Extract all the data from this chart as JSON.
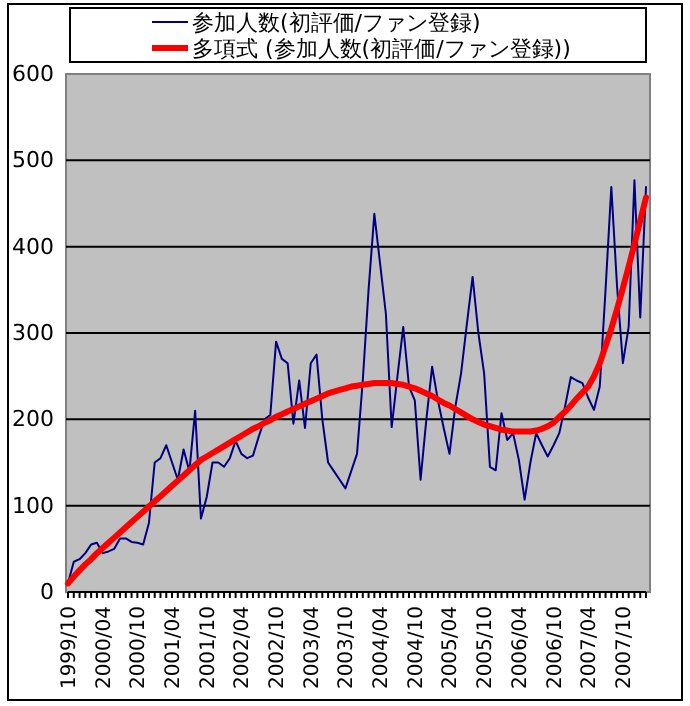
{
  "chart_data": {
    "type": "line",
    "categories": [
      "1999/10",
      null,
      null,
      null,
      null,
      null,
      "2000/04",
      null,
      null,
      null,
      null,
      null,
      "2000/10",
      null,
      null,
      null,
      null,
      null,
      "2001/04",
      null,
      null,
      null,
      null,
      null,
      "2001/10",
      null,
      null,
      null,
      null,
      null,
      "2002/04",
      null,
      null,
      null,
      null,
      null,
      "2002/10",
      null,
      null,
      null,
      null,
      null,
      "2003/04",
      null,
      null,
      null,
      null,
      null,
      "2003/10",
      null,
      null,
      null,
      null,
      null,
      "2004/04",
      null,
      null,
      null,
      null,
      null,
      "2004/10",
      null,
      null,
      null,
      null,
      null,
      "2005/04",
      null,
      null,
      null,
      null,
      null,
      "2005/10",
      null,
      null,
      null,
      null,
      null,
      "2006/04",
      null,
      null,
      null,
      null,
      null,
      "2006/10",
      null,
      null,
      null,
      null,
      null,
      "2007/04",
      null,
      null,
      null,
      null,
      null,
      "2007/10",
      null,
      null,
      null,
      null
    ],
    "series": [
      {
        "name": "参加人数(初評価/ファン登録)",
        "color": "#000080",
        "values": [
          10,
          35,
          38,
          45,
          55,
          57,
          45,
          47,
          50,
          62,
          62,
          58,
          57,
          55,
          80,
          150,
          155,
          170,
          150,
          130,
          165,
          140,
          210,
          85,
          110,
          150,
          150,
          145,
          155,
          175,
          160,
          155,
          158,
          180,
          200,
          205,
          290,
          270,
          265,
          195,
          245,
          190,
          265,
          275,
          200,
          150,
          140,
          130,
          120,
          140,
          160,
          245,
          350,
          438,
          380,
          322,
          191,
          250,
          307,
          238,
          222,
          130,
          200,
          261,
          222,
          190,
          160,
          214,
          253,
          310,
          365,
          300,
          253,
          145,
          141,
          207,
          176,
          184,
          153,
          107,
          150,
          184,
          170,
          157,
          170,
          184,
          215,
          249,
          245,
          242,
          225,
          211,
          238,
          350,
          469,
          353,
          265,
          307,
          477,
          318,
          469
        ]
      },
      {
        "name": "多項式 (参加人数(初評価/ファン登録))",
        "color": "#ff0000",
        "values": [
          10,
          18,
          25,
          32,
          38,
          45,
          51,
          57,
          63,
          69,
          75,
          81,
          87,
          93,
          99,
          105,
          111,
          117,
          123,
          129,
          135,
          141,
          147,
          153,
          157,
          161,
          165,
          169,
          173,
          177,
          181,
          185,
          189,
          192,
          196,
          199,
          203,
          206,
          209,
          212,
          215,
          218,
          221,
          224,
          227,
          230,
          232,
          234,
          236,
          238,
          239,
          240,
          241,
          242,
          242,
          242,
          242,
          241,
          240,
          238,
          236,
          233,
          230,
          227,
          223,
          219,
          216,
          212,
          208,
          204,
          200,
          197,
          194,
          192,
          190,
          188,
          187,
          186,
          186,
          186,
          186,
          187,
          189,
          192,
          196,
          203,
          209,
          216,
          224,
          231,
          238,
          250,
          265,
          285,
          305,
          328,
          352,
          377,
          403,
          430,
          457
        ]
      }
    ],
    "ylim": [
      0,
      600
    ],
    "yticks": [
      0,
      100,
      200,
      300,
      400,
      500,
      600
    ],
    "grid": "y",
    "legend": "top"
  }
}
